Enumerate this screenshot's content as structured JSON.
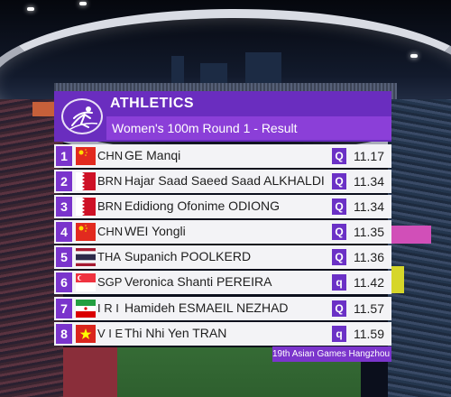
{
  "header": {
    "sport": "ATHLETICS",
    "event": "Women's 100m Round 1 - Result"
  },
  "results": [
    {
      "rank": "1",
      "noc": "CHN",
      "name": "GE Manqi",
      "qual": "Q",
      "time": "11.17",
      "flag": "china-flag-icon"
    },
    {
      "rank": "2",
      "noc": "BRN",
      "name": "Hajar Saad Saeed Saad ALKHALDI",
      "qual": "Q",
      "time": "11.34",
      "flag": "bahrain-flag-icon"
    },
    {
      "rank": "3",
      "noc": "BRN",
      "name": "Edidiong Ofonime ODIONG",
      "qual": "Q",
      "time": "11.34",
      "flag": "bahrain-flag-icon"
    },
    {
      "rank": "4",
      "noc": "CHN",
      "name": "WEI Yongli",
      "qual": "Q",
      "time": "11.35",
      "flag": "china-flag-icon"
    },
    {
      "rank": "5",
      "noc": "THA",
      "name": "Supanich POOLKERD",
      "qual": "Q",
      "time": "11.36",
      "flag": "thailand-flag-icon"
    },
    {
      "rank": "6",
      "noc": "SGP",
      "name": "Veronica Shanti PEREIRA",
      "qual": "q",
      "time": "11.42",
      "flag": "singapore-flag-icon"
    },
    {
      "rank": "7",
      "noc": "I R I",
      "name": "Hamideh ESMAEIL NEZHAD",
      "qual": "Q",
      "time": "11.57",
      "flag": "iran-flag-icon"
    },
    {
      "rank": "8",
      "noc": "V I E",
      "name": "Thi Nhi Yen TRAN",
      "qual": "q",
      "time": "11.59",
      "flag": "vietnam-flag-icon"
    }
  ],
  "footer": {
    "text": "19th Asian Games Hangzhou"
  },
  "colors": {
    "header_purple": "#6a2dbf",
    "event_purple": "#8b3fd8",
    "row_bg": "#f3f3f6"
  }
}
